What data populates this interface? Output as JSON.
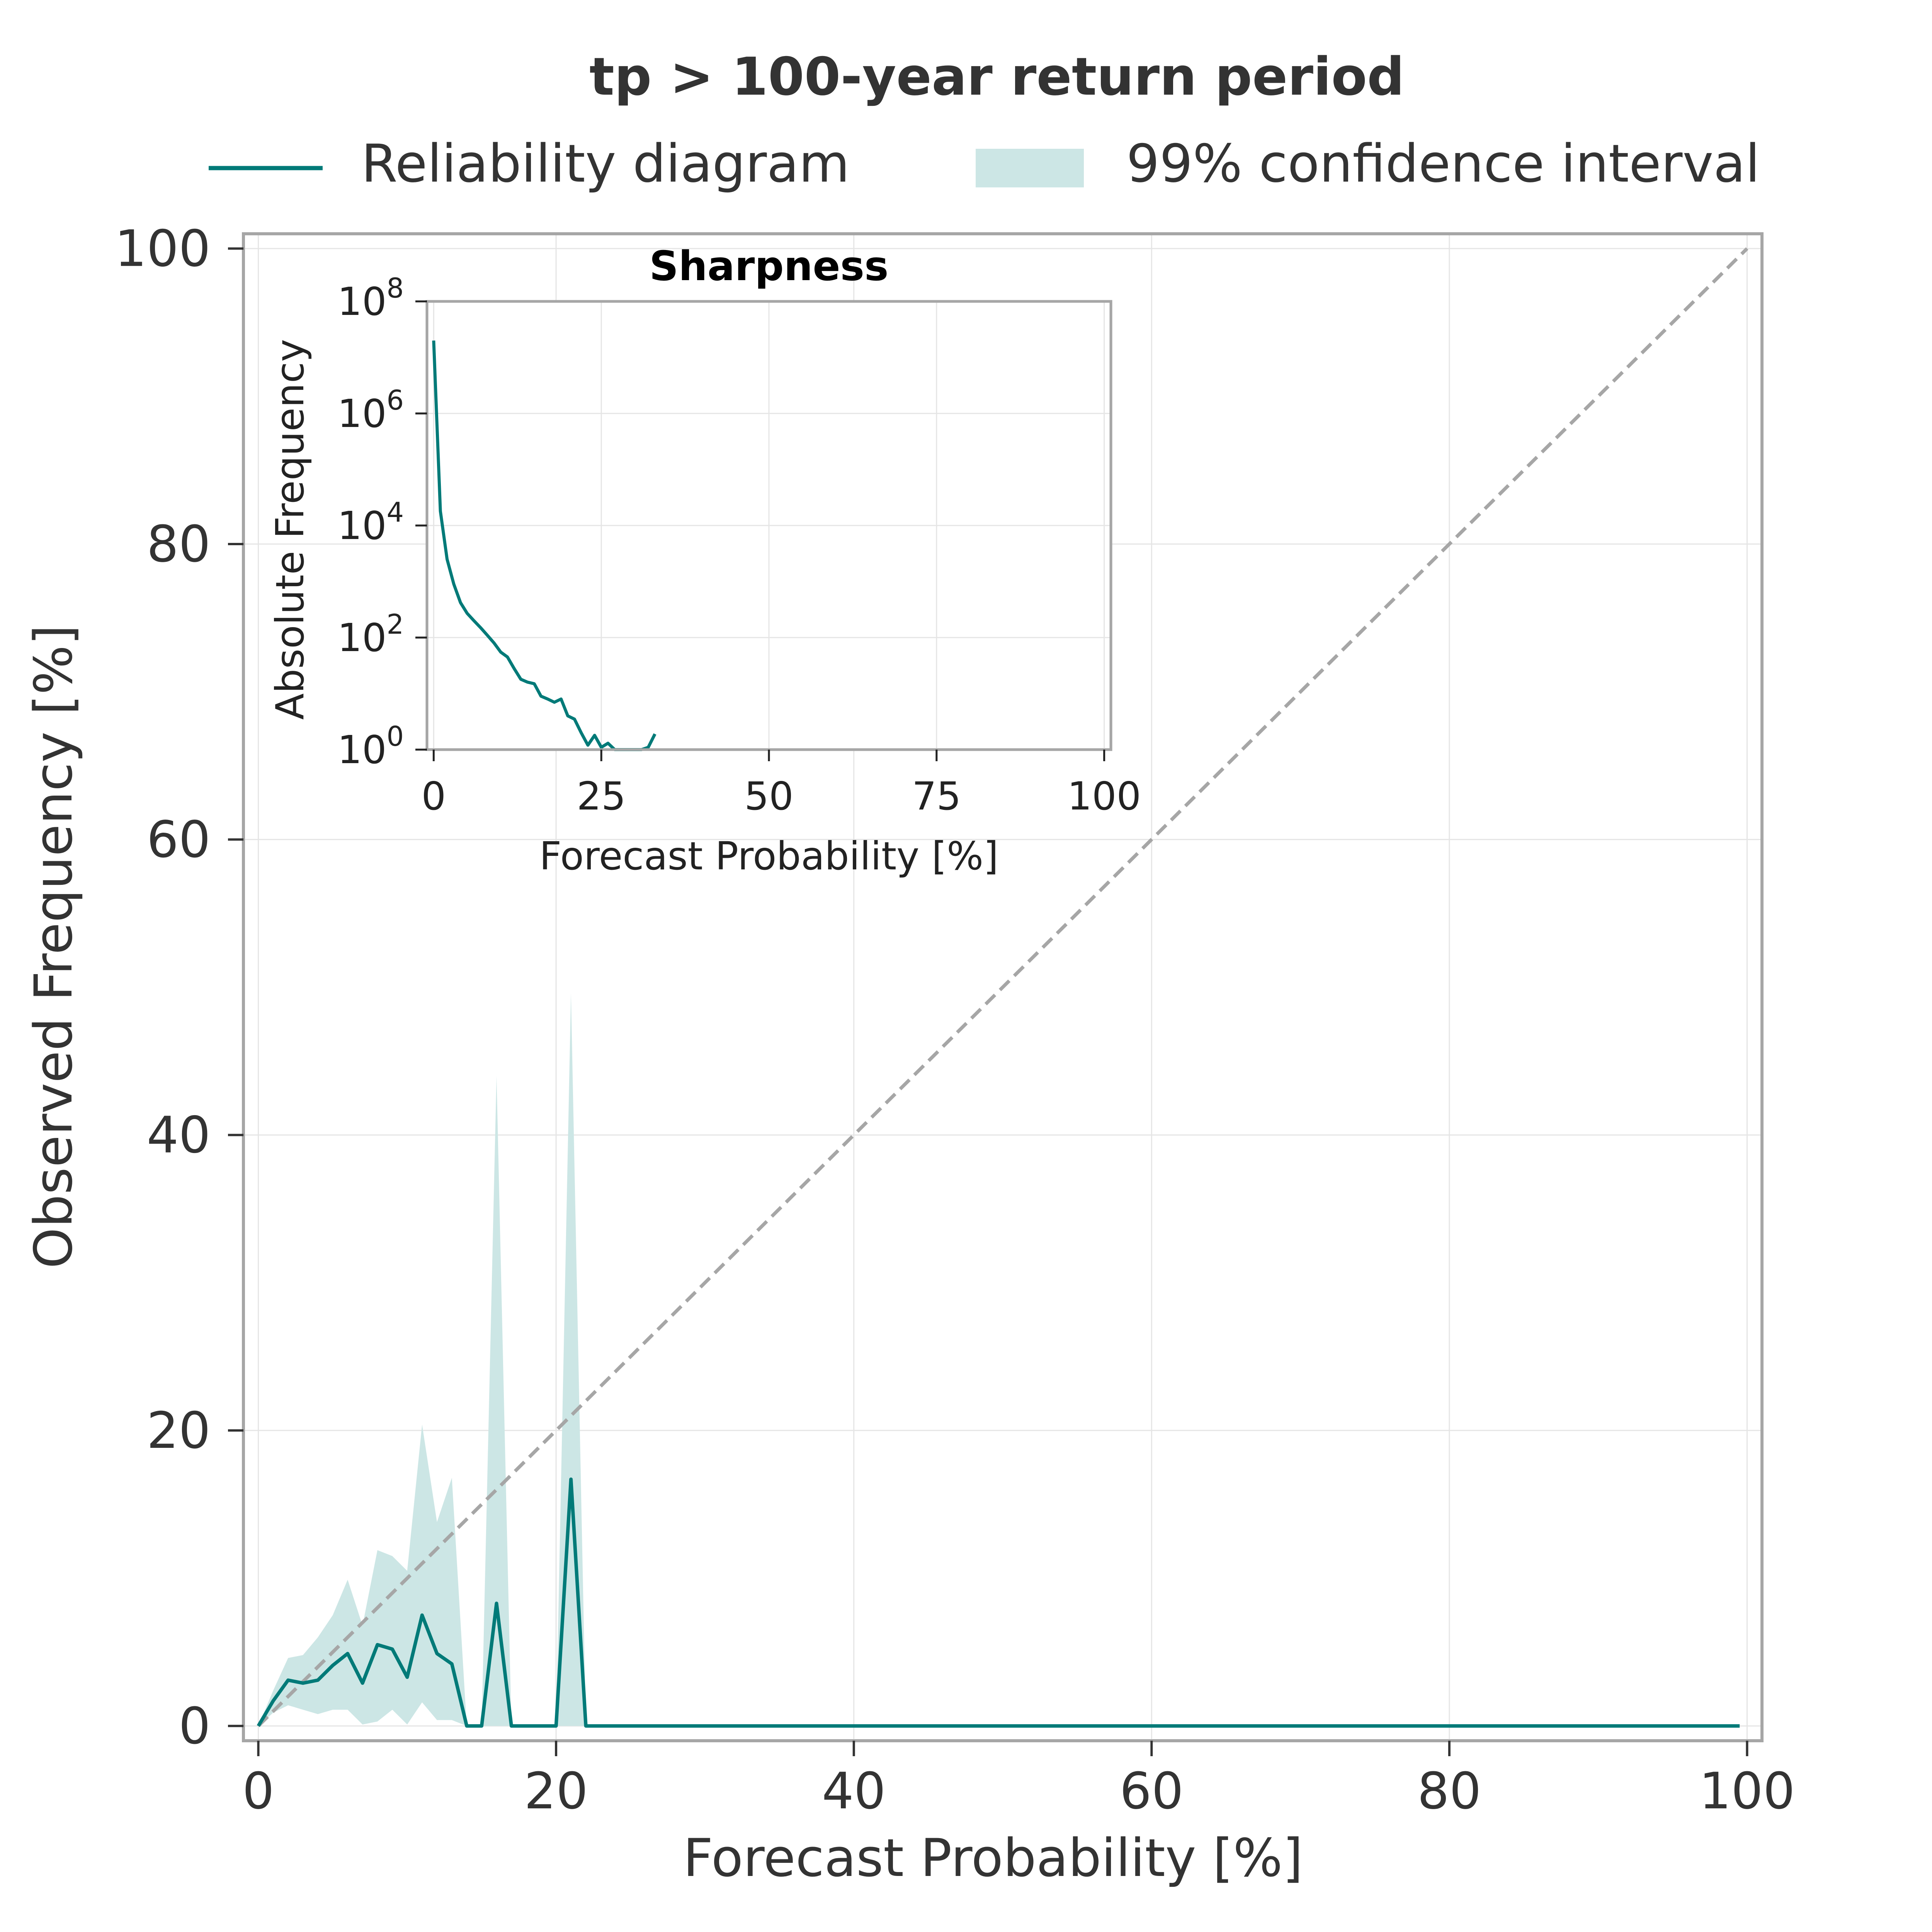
{
  "colors": {
    "line": "#007a78",
    "band": "#cce6e5",
    "diagonal": "#a6a6a6",
    "frame": "#a6a6a6",
    "grid": "#e5e5e5"
  },
  "chart_data": [
    {
      "type": "line",
      "title": "tp > 100-year return period",
      "xlabel": "Forecast Probability [%]",
      "ylabel": "Observed Frequency [%]",
      "xlim": [
        -1,
        101
      ],
      "ylim": [
        -1,
        101
      ],
      "xticks": [
        0,
        20,
        40,
        60,
        80,
        100
      ],
      "yticks": [
        0,
        20,
        40,
        60,
        80,
        100
      ],
      "grid": true,
      "legend": {
        "placement": "top",
        "entries": [
          "Reliability diagram",
          "99% confidence interval"
        ]
      },
      "reference_line": {
        "from": [
          0,
          0
        ],
        "to": [
          100,
          100
        ],
        "style": "dashed"
      },
      "series": [
        {
          "name": "Reliability diagram",
          "x": [
            0,
            1,
            2,
            3,
            4,
            5,
            6,
            7,
            8,
            9,
            10,
            11,
            12,
            13,
            14,
            15,
            16,
            17,
            18,
            19,
            20,
            21,
            22,
            23,
            30,
            40,
            50,
            60,
            70,
            80,
            90,
            99.5
          ],
          "y": [
            0,
            1.7,
            3.1,
            2.9,
            3.1,
            4.1,
            4.9,
            2.9,
            5.5,
            5.2,
            3.3,
            7.5,
            4.9,
            4.2,
            0,
            0,
            8.3,
            0,
            0,
            0,
            0,
            16.7,
            0,
            0,
            0,
            0,
            0,
            0,
            0,
            0,
            0,
            0
          ]
        }
      ],
      "confidence_band": {
        "name": "99% confidence interval",
        "x": [
          0,
          1,
          2,
          3,
          4,
          5,
          6,
          7,
          8,
          9,
          10,
          11,
          12,
          13,
          14,
          15,
          16,
          17,
          18,
          19,
          20,
          21,
          22,
          23
        ],
        "lower": [
          0,
          0.9,
          1.4,
          1.1,
          0.8,
          1.1,
          1.1,
          0.1,
          0.3,
          1.1,
          0.1,
          1.6,
          0.4,
          0.4,
          0,
          0,
          0,
          0,
          0,
          0,
          0,
          0,
          0,
          0
        ],
        "upper": [
          0,
          2.4,
          4.6,
          4.8,
          6.0,
          7.5,
          9.9,
          6.8,
          11.9,
          11.5,
          10.5,
          20.4,
          13.8,
          16.8,
          0,
          0,
          44.0,
          0,
          0,
          0,
          0,
          49.6,
          0,
          0
        ]
      }
    },
    {
      "type": "line",
      "title": "Sharpness",
      "xlabel": "Forecast Probability [%]",
      "ylabel": "Absolute Frequency",
      "xlim": [
        -1,
        101
      ],
      "ylim": [
        1,
        100000000
      ],
      "yscale": "log",
      "xticks": [
        0,
        25,
        50,
        75,
        100
      ],
      "yticks": [
        1,
        100,
        10000,
        1000000,
        100000000
      ],
      "ytick_base": "10",
      "ytick_exponents": [
        "0",
        "2",
        "4",
        "6",
        "8"
      ],
      "grid": true,
      "series": [
        {
          "x": [
            0,
            1,
            2,
            3,
            4,
            5,
            6,
            7,
            8,
            9,
            10,
            11,
            12,
            13,
            14,
            15,
            16,
            17,
            18,
            19,
            20,
            21,
            22,
            23,
            24,
            25,
            26,
            27,
            28,
            29,
            30,
            31,
            32,
            33
          ],
          "y": [
            20000000,
            18000,
            2500,
            900,
            420,
            270,
            200,
            150,
            110,
            80,
            55,
            45,
            28,
            18,
            16,
            15,
            9,
            8,
            7,
            8,
            4,
            3.5,
            2,
            1.2,
            1.8,
            1.1,
            1.3,
            0.9,
            0.9,
            0.9,
            0.9,
            0.9,
            1.1,
            1.9
          ]
        }
      ]
    }
  ]
}
